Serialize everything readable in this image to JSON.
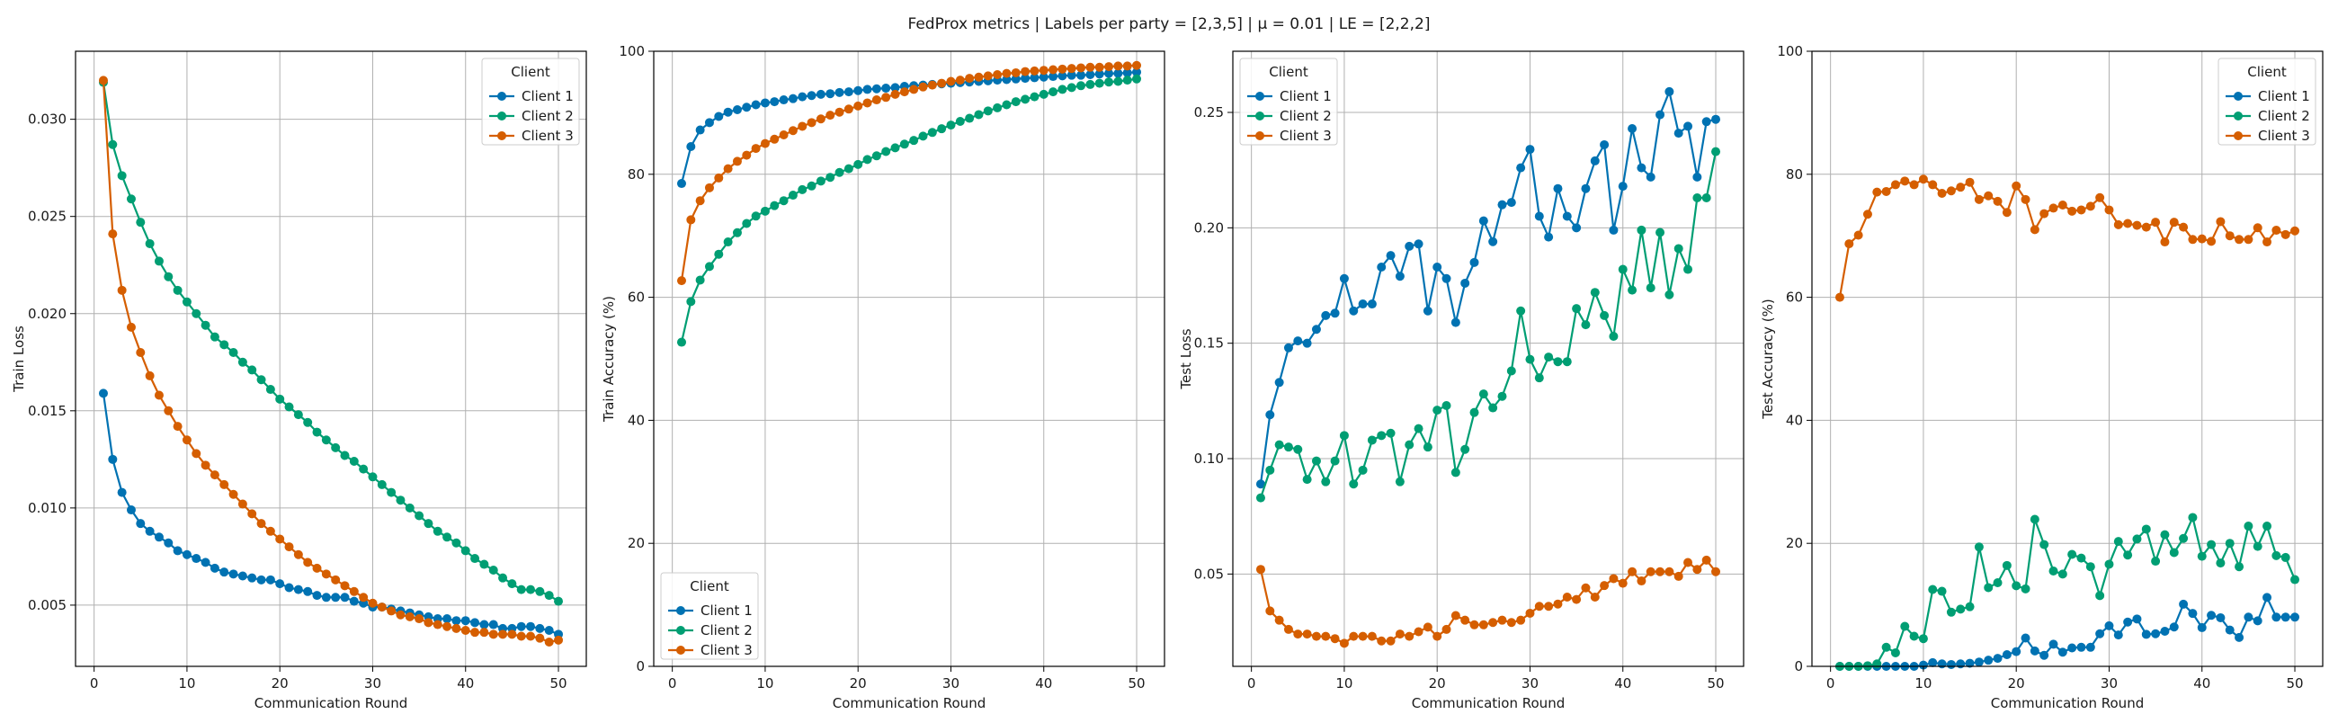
{
  "figure": {
    "title": "FedProx metrics | Labels per party = [2,3,5] | μ = 0.01 | LE = [2,2,2]"
  },
  "colors": {
    "Client 1": "#0072B2",
    "Client 2": "#009E73",
    "Client 3": "#D55E00"
  },
  "chart_data": [
    {
      "type": "line",
      "xlabel": "Communication Round",
      "ylabel": "Train Loss",
      "xlim": [
        -2,
        53
      ],
      "ylim": [
        0.00185,
        0.0335
      ],
      "xticks": [
        0,
        10,
        20,
        30,
        40,
        50
      ],
      "yticks": [
        0.005,
        0.01,
        0.015,
        0.02,
        0.025,
        0.03
      ],
      "ytick_labels": [
        "0.005",
        "0.010",
        "0.015",
        "0.020",
        "0.025",
        "0.030"
      ],
      "xtick_labels": [
        "0",
        "10",
        "20",
        "30",
        "40",
        "50"
      ],
      "grid": true,
      "legend": {
        "title": "Client",
        "position": "top-right"
      },
      "x": [
        1,
        2,
        3,
        4,
        5,
        6,
        7,
        8,
        9,
        10,
        11,
        12,
        13,
        14,
        15,
        16,
        17,
        18,
        19,
        20,
        21,
        22,
        23,
        24,
        25,
        26,
        27,
        28,
        29,
        30,
        31,
        32,
        33,
        34,
        35,
        36,
        37,
        38,
        39,
        40,
        41,
        42,
        43,
        44,
        45,
        46,
        47,
        48,
        49,
        50
      ],
      "series": [
        {
          "name": "Client 1",
          "values": [
            0.0159,
            0.0125,
            0.0108,
            0.0099,
            0.0092,
            0.0088,
            0.0085,
            0.0082,
            0.0078,
            0.0076,
            0.0074,
            0.0072,
            0.0069,
            0.0067,
            0.0066,
            0.0065,
            0.0064,
            0.0063,
            0.0063,
            0.0061,
            0.0059,
            0.0058,
            0.0057,
            0.0055,
            0.0054,
            0.0054,
            0.0054,
            0.0052,
            0.0051,
            0.0049,
            0.0049,
            0.0048,
            0.0047,
            0.0046,
            0.0045,
            0.0044,
            0.0043,
            0.0043,
            0.0042,
            0.0042,
            0.0041,
            0.004,
            0.004,
            0.0038,
            0.0038,
            0.0039,
            0.0039,
            0.0038,
            0.0037,
            0.0035
          ]
        },
        {
          "name": "Client 2",
          "values": [
            0.0319,
            0.0287,
            0.0271,
            0.0259,
            0.0247,
            0.0236,
            0.0227,
            0.0219,
            0.0212,
            0.0206,
            0.02,
            0.0194,
            0.0188,
            0.0184,
            0.018,
            0.0175,
            0.0171,
            0.0166,
            0.0161,
            0.0156,
            0.0152,
            0.0148,
            0.0144,
            0.0139,
            0.0135,
            0.0131,
            0.0127,
            0.0124,
            0.012,
            0.0116,
            0.0112,
            0.0108,
            0.0104,
            0.01,
            0.0096,
            0.0092,
            0.0088,
            0.0085,
            0.0082,
            0.0078,
            0.0074,
            0.0071,
            0.0068,
            0.0064,
            0.0061,
            0.0058,
            0.0058,
            0.0057,
            0.0055,
            0.0052
          ]
        },
        {
          "name": "Client 3",
          "values": [
            0.032,
            0.0241,
            0.0212,
            0.0193,
            0.018,
            0.0168,
            0.0158,
            0.015,
            0.0142,
            0.0135,
            0.0128,
            0.0122,
            0.0117,
            0.0112,
            0.0107,
            0.0102,
            0.0097,
            0.0092,
            0.0088,
            0.0084,
            0.008,
            0.0076,
            0.0072,
            0.0069,
            0.0066,
            0.0063,
            0.006,
            0.0057,
            0.0054,
            0.0051,
            0.0049,
            0.0047,
            0.0045,
            0.0044,
            0.0043,
            0.0041,
            0.004,
            0.0039,
            0.0038,
            0.0037,
            0.0036,
            0.0036,
            0.0035,
            0.0035,
            0.0035,
            0.0034,
            0.0034,
            0.0033,
            0.0031,
            0.0032
          ]
        }
      ]
    },
    {
      "type": "line",
      "xlabel": "Communication Round",
      "ylabel": "Train Accuracy (%)",
      "xlim": [
        -2,
        53
      ],
      "ylim": [
        0,
        100
      ],
      "xticks": [
        0,
        10,
        20,
        30,
        40,
        50
      ],
      "yticks": [
        0,
        20,
        40,
        60,
        80,
        100
      ],
      "ytick_labels": [
        "0",
        "20",
        "40",
        "60",
        "80",
        "100"
      ],
      "xtick_labels": [
        "0",
        "10",
        "20",
        "30",
        "40",
        "50"
      ],
      "grid": true,
      "legend": {
        "title": "Client",
        "position": "bottom-left"
      },
      "x": [
        1,
        2,
        3,
        4,
        5,
        6,
        7,
        8,
        9,
        10,
        11,
        12,
        13,
        14,
        15,
        16,
        17,
        18,
        19,
        20,
        21,
        22,
        23,
        24,
        25,
        26,
        27,
        28,
        29,
        30,
        31,
        32,
        33,
        34,
        35,
        36,
        37,
        38,
        39,
        40,
        41,
        42,
        43,
        44,
        45,
        46,
        47,
        48,
        49,
        50
      ],
      "series": [
        {
          "name": "Client 1",
          "values": [
            78.5,
            84.5,
            87.2,
            88.4,
            89.4,
            90.1,
            90.5,
            90.9,
            91.3,
            91.6,
            91.8,
            92.1,
            92.3,
            92.6,
            92.8,
            93.0,
            93.1,
            93.3,
            93.4,
            93.6,
            93.8,
            93.9,
            94.0,
            94.1,
            94.3,
            94.4,
            94.5,
            94.6,
            94.7,
            94.8,
            94.9,
            95.0,
            95.1,
            95.2,
            95.3,
            95.4,
            95.5,
            95.6,
            95.7,
            95.8,
            95.9,
            96.0,
            96.1,
            96.1,
            96.2,
            96.3,
            96.4,
            96.4,
            96.5,
            96.6
          ]
        },
        {
          "name": "Client 2",
          "values": [
            52.7,
            59.3,
            62.8,
            65.0,
            67.0,
            69.0,
            70.5,
            72.0,
            73.2,
            74.0,
            74.9,
            75.7,
            76.6,
            77.5,
            78.1,
            78.9,
            79.5,
            80.3,
            80.9,
            81.6,
            82.4,
            83.0,
            83.7,
            84.3,
            84.9,
            85.5,
            86.2,
            86.8,
            87.4,
            88.0,
            88.6,
            89.1,
            89.7,
            90.3,
            90.8,
            91.3,
            91.8,
            92.2,
            92.6,
            93.0,
            93.4,
            93.8,
            94.1,
            94.4,
            94.6,
            94.8,
            95.0,
            95.1,
            95.3,
            95.5
          ]
        },
        {
          "name": "Client 3",
          "values": [
            62.7,
            72.6,
            75.7,
            77.8,
            79.4,
            80.9,
            82.1,
            83.1,
            84.2,
            85.0,
            85.7,
            86.4,
            87.1,
            87.8,
            88.4,
            89.0,
            89.6,
            90.1,
            90.6,
            91.1,
            91.6,
            92.1,
            92.5,
            93.0,
            93.4,
            93.8,
            94.2,
            94.5,
            94.8,
            95.1,
            95.3,
            95.6,
            95.8,
            96.0,
            96.2,
            96.4,
            96.5,
            96.7,
            96.8,
            96.9,
            97.0,
            97.1,
            97.2,
            97.3,
            97.4,
            97.4,
            97.5,
            97.6,
            97.6,
            97.7
          ]
        }
      ]
    },
    {
      "type": "line",
      "xlabel": "Communication Round",
      "ylabel": "Test Loss",
      "xlim": [
        -2,
        53
      ],
      "ylim": [
        0.01,
        0.2765
      ],
      "xticks": [
        0,
        10,
        20,
        30,
        40,
        50
      ],
      "yticks": [
        0.05,
        0.1,
        0.15,
        0.2,
        0.25
      ],
      "ytick_labels": [
        "0.05",
        "0.10",
        "0.15",
        "0.20",
        "0.25"
      ],
      "xtick_labels": [
        "0",
        "10",
        "20",
        "30",
        "40",
        "50"
      ],
      "grid": true,
      "legend": {
        "title": "Client",
        "position": "top-left"
      },
      "x": [
        1,
        2,
        3,
        4,
        5,
        6,
        7,
        8,
        9,
        10,
        11,
        12,
        13,
        14,
        15,
        16,
        17,
        18,
        19,
        20,
        21,
        22,
        23,
        24,
        25,
        26,
        27,
        28,
        29,
        30,
        31,
        32,
        33,
        34,
        35,
        36,
        37,
        38,
        39,
        40,
        41,
        42,
        43,
        44,
        45,
        46,
        47,
        48,
        49,
        50
      ],
      "series": [
        {
          "name": "Client 1",
          "values": [
            0.089,
            0.119,
            0.133,
            0.148,
            0.151,
            0.15,
            0.156,
            0.162,
            0.163,
            0.178,
            0.164,
            0.167,
            0.167,
            0.183,
            0.188,
            0.179,
            0.192,
            0.193,
            0.164,
            0.183,
            0.178,
            0.159,
            0.176,
            0.185,
            0.203,
            0.194,
            0.21,
            0.211,
            0.226,
            0.234,
            0.205,
            0.196,
            0.217,
            0.205,
            0.2,
            0.217,
            0.229,
            0.236,
            0.199,
            0.218,
            0.243,
            0.226,
            0.222,
            0.249,
            0.259,
            0.241,
            0.244,
            0.222,
            0.246,
            0.247
          ]
        },
        {
          "name": "Client 2",
          "values": [
            0.083,
            0.095,
            0.106,
            0.105,
            0.104,
            0.091,
            0.099,
            0.09,
            0.099,
            0.11,
            0.089,
            0.095,
            0.108,
            0.11,
            0.111,
            0.09,
            0.106,
            0.113,
            0.105,
            0.121,
            0.123,
            0.094,
            0.104,
            0.12,
            0.128,
            0.122,
            0.127,
            0.138,
            0.164,
            0.143,
            0.135,
            0.144,
            0.142,
            0.142,
            0.165,
            0.158,
            0.172,
            0.162,
            0.153,
            0.182,
            0.173,
            0.199,
            0.174,
            0.198,
            0.171,
            0.191,
            0.182,
            0.213,
            0.213,
            0.233
          ]
        },
        {
          "name": "Client 3",
          "values": [
            0.052,
            0.034,
            0.03,
            0.026,
            0.024,
            0.024,
            0.023,
            0.023,
            0.022,
            0.02,
            0.023,
            0.023,
            0.023,
            0.021,
            0.021,
            0.024,
            0.023,
            0.025,
            0.027,
            0.023,
            0.026,
            0.032,
            0.03,
            0.028,
            0.028,
            0.029,
            0.03,
            0.029,
            0.03,
            0.033,
            0.036,
            0.036,
            0.037,
            0.04,
            0.039,
            0.044,
            0.04,
            0.045,
            0.048,
            0.046,
            0.051,
            0.047,
            0.051,
            0.051,
            0.051,
            0.049,
            0.055,
            0.052,
            0.056,
            0.051
          ]
        }
      ]
    },
    {
      "type": "line",
      "xlabel": "Communication Round",
      "ylabel": "Test Accuracy (%)",
      "xlim": [
        -2,
        53
      ],
      "ylim": [
        0,
        100
      ],
      "xticks": [
        0,
        10,
        20,
        30,
        40,
        50
      ],
      "yticks": [
        0,
        20,
        40,
        60,
        80,
        100
      ],
      "ytick_labels": [
        "0",
        "20",
        "40",
        "60",
        "80",
        "100"
      ],
      "xtick_labels": [
        "0",
        "10",
        "20",
        "30",
        "40",
        "50"
      ],
      "grid": true,
      "legend": {
        "title": "Client",
        "position": "top-right"
      },
      "x": [
        1,
        2,
        3,
        4,
        5,
        6,
        7,
        8,
        9,
        10,
        11,
        12,
        13,
        14,
        15,
        16,
        17,
        18,
        19,
        20,
        21,
        22,
        23,
        24,
        25,
        26,
        27,
        28,
        29,
        30,
        31,
        32,
        33,
        34,
        35,
        36,
        37,
        38,
        39,
        40,
        41,
        42,
        43,
        44,
        45,
        46,
        47,
        48,
        49,
        50
      ],
      "series": [
        {
          "name": "Client 1",
          "values": [
            0,
            0,
            0,
            0,
            0,
            0,
            0,
            0,
            0,
            0.2,
            0.6,
            0.4,
            0.3,
            0.4,
            0.5,
            0.7,
            1.0,
            1.3,
            1.9,
            2.4,
            4.6,
            2.5,
            1.8,
            3.6,
            2.3,
            3.0,
            3.1,
            3.1,
            5.3,
            6.6,
            5.1,
            7.2,
            7.7,
            5.2,
            5.3,
            5.7,
            6.4,
            10.1,
            8.6,
            6.3,
            8.3,
            7.9,
            5.9,
            4.7,
            8.0,
            7.4,
            11.2,
            8.0,
            8.0,
            8.0
          ]
        },
        {
          "name": "Client 2",
          "values": [
            0,
            0,
            0,
            0.1,
            0.4,
            3.1,
            2.2,
            6.5,
            4.9,
            4.5,
            12.5,
            12.2,
            8.8,
            9.3,
            9.7,
            19.4,
            12.8,
            13.6,
            16.4,
            13.1,
            12.6,
            23.9,
            19.8,
            15.5,
            15.0,
            18.2,
            17.6,
            16.2,
            11.5,
            16.6,
            20.3,
            18.1,
            20.7,
            22.3,
            17.1,
            21.4,
            18.5,
            20.8,
            24.2,
            17.9,
            19.8,
            16.8,
            20.0,
            16.2,
            22.8,
            19.5,
            22.8,
            18.0,
            17.7,
            14.1
          ]
        },
        {
          "name": "Client 3",
          "values": [
            60.0,
            68.7,
            70.1,
            73.5,
            77.1,
            77.2,
            78.3,
            78.9,
            78.3,
            79.2,
            78.3,
            76.9,
            77.3,
            77.9,
            78.7,
            75.9,
            76.5,
            75.6,
            73.8,
            78.1,
            75.9,
            71.0,
            73.6,
            74.5,
            75.0,
            74.0,
            74.2,
            74.8,
            76.2,
            74.2,
            71.8,
            72.0,
            71.7,
            71.4,
            72.2,
            69.0,
            72.2,
            71.4,
            69.4,
            69.5,
            69.1,
            72.3,
            70.0,
            69.4,
            69.4,
            71.3,
            69.0,
            70.9,
            70.2,
            70.8
          ]
        }
      ]
    }
  ]
}
